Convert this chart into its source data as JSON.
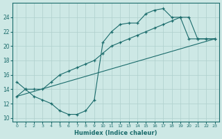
{
  "xlabel": "Humidex (Indice chaleur)",
  "ylabel": "",
  "bg_color": "#cde8e5",
  "grid_color": "#aecfcc",
  "line_color": "#1a6b6b",
  "xlim": [
    -0.5,
    23.5
  ],
  "ylim": [
    9.5,
    26.0
  ],
  "xticks": [
    0,
    1,
    2,
    3,
    4,
    5,
    6,
    7,
    8,
    9,
    10,
    11,
    12,
    13,
    14,
    15,
    16,
    17,
    18,
    19,
    20,
    21,
    22,
    23
  ],
  "yticks": [
    10,
    12,
    14,
    16,
    18,
    20,
    22,
    24
  ],
  "series1_x": [
    0,
    1,
    2,
    3,
    4,
    5,
    6,
    7,
    8,
    9,
    10,
    11,
    12,
    13,
    14,
    15,
    16,
    17,
    18,
    19,
    20,
    21,
    22,
    23
  ],
  "series1_y": [
    15,
    14,
    13,
    12.5,
    12,
    11,
    10.5,
    10.5,
    11,
    12.5,
    20.5,
    22,
    23,
    23.2,
    23.2,
    24.5,
    25,
    25.2,
    24,
    24,
    21,
    21,
    21,
    21
  ],
  "series2_x": [
    0,
    1,
    2,
    3,
    4,
    5,
    6,
    7,
    8,
    9,
    10,
    11,
    12,
    13,
    14,
    15,
    16,
    17,
    18,
    19,
    20,
    21,
    22,
    23
  ],
  "series2_y": [
    13,
    14,
    14,
    14,
    15,
    16,
    16.5,
    17,
    17.5,
    18,
    19,
    20,
    20.5,
    21,
    21.5,
    22,
    22.5,
    23,
    23.5,
    24,
    24,
    21,
    21,
    21
  ],
  "series3_x": [
    0,
    23
  ],
  "series3_y": [
    13,
    21
  ]
}
